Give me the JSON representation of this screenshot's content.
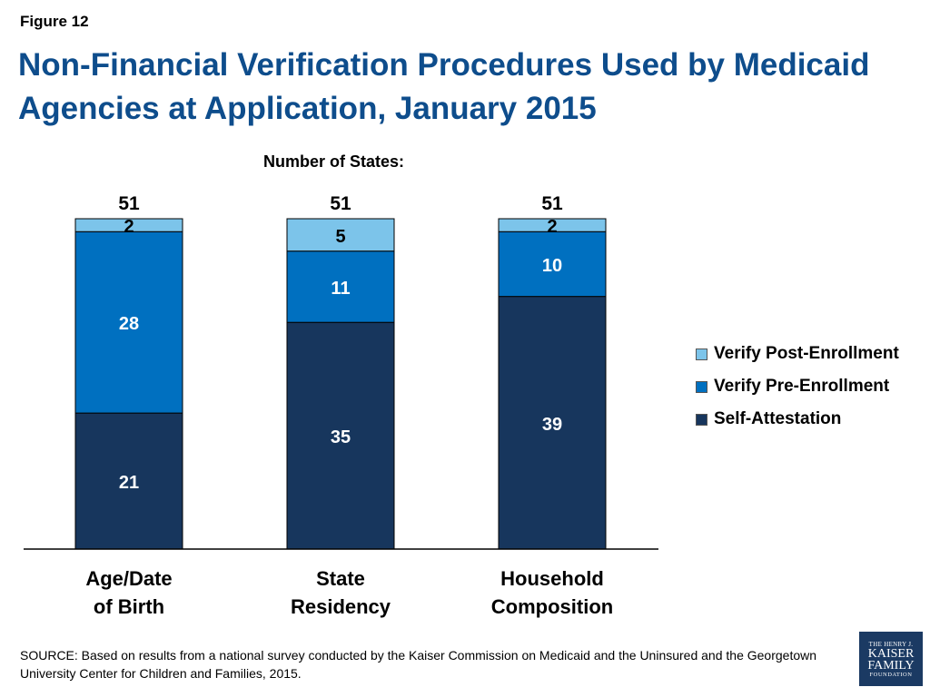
{
  "figure_label": "Figure 12",
  "title": "Non-Financial Verification Procedures Used by Medicaid Agencies at Application, January 2015",
  "source": "SOURCE: Based on results from a national survey conducted by the Kaiser Commission on Medicaid and the Uninsured and the Georgetown University Center for Children and Families, 2015.",
  "logo": {
    "line1": "THE HENRY J.",
    "line2": "KAISER",
    "line3": "FAMILY",
    "line4": "FOUNDATION"
  },
  "chart_data": {
    "type": "bar",
    "stacked": true,
    "subtitle": "Number of States:",
    "categories": [
      [
        "Age/Date",
        "of Birth"
      ],
      [
        "State",
        "Residency"
      ],
      [
        "Household",
        "Composition"
      ]
    ],
    "series": [
      {
        "name": "Self-Attestation",
        "color": "#17365d",
        "values": [
          21,
          35,
          39
        ]
      },
      {
        "name": "Verify Pre-Enrollment",
        "color": "#0070c0",
        "values": [
          28,
          11,
          10
        ]
      },
      {
        "name": "Verify Post-Enrollment",
        "color": "#7cc4ea",
        "values": [
          2,
          5,
          2
        ]
      }
    ],
    "totals": [
      51,
      51,
      51
    ],
    "ylim": [
      0,
      51
    ],
    "legend_position": "right",
    "legend_order": [
      "Verify Post-Enrollment",
      "Verify Pre-Enrollment",
      "Self-Attestation"
    ]
  }
}
